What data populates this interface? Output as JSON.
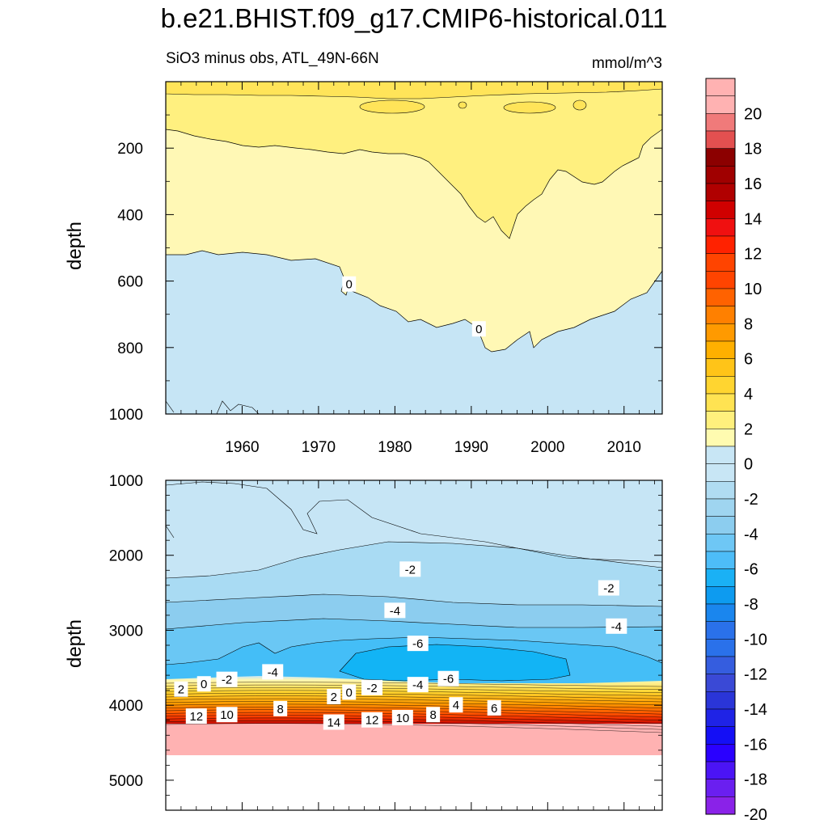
{
  "title": "b.e21.BHIST.f09_g17.CMIP6-historical.011",
  "subtitle_left": "SiO3 minus obs, ATL_49N-66N",
  "subtitle_right": "mmol/m^3",
  "colors": {
    "pos_palette": [
      "#fffbb0",
      "#fff07d",
      "#ffe352",
      "#ffd530",
      "#ffc418",
      "#ffb000",
      "#ff9a00",
      "#ff8000",
      "#ff6200",
      "#ff4400",
      "#ff2200",
      "#f01010",
      "#d00000",
      "#b00000",
      "#a00000",
      "#8c0000",
      "#e35050",
      "#f07a7a",
      "#ffb2b2"
    ],
    "neg_palette": [
      "#c8e6f5",
      "#b0dcf2",
      "#9fd5f0",
      "#8ccdef",
      "#6ec7f5",
      "#4dbdf8",
      "#1ab1f5",
      "#0d9bf0",
      "#1a86ee",
      "#2a71ea",
      "#355ddf",
      "#3a49d6",
      "#2a35d8",
      "#1f23e6",
      "#140ff5",
      "#2a00ff",
      "#4b14f5",
      "#6a1ff0",
      "#8a22e8"
    ]
  },
  "chart_data": [
    {
      "panel": "top",
      "type": "contour",
      "ylabel": "depth",
      "xlim": [
        1950,
        2015
      ],
      "ylim": [
        1000,
        0
      ],
      "x_ticks": [
        1960,
        1970,
        1980,
        1990,
        2000,
        2010
      ],
      "y_ticks": [
        200,
        400,
        600,
        800,
        1000
      ],
      "contour_labels": [
        {
          "text": "0",
          "year": 1974,
          "depth": 610
        },
        {
          "text": "0",
          "year": 1991,
          "depth": 745
        }
      ]
    },
    {
      "panel": "bottom",
      "type": "contour",
      "ylabel": "depth",
      "xlim": [
        1950,
        2015
      ],
      "ylim": [
        5400,
        1000
      ],
      "y_ticks": [
        1000,
        2000,
        3000,
        4000,
        5000
      ],
      "contour_labels": [
        {
          "text": "-2",
          "year": 1982,
          "depth": 2190
        },
        {
          "text": "-2",
          "year": 2008,
          "depth": 2440
        },
        {
          "text": "-4",
          "year": 1980,
          "depth": 2740
        },
        {
          "text": "-4",
          "year": 2009,
          "depth": 2950
        },
        {
          "text": "-6",
          "year": 1983,
          "depth": 3180
        },
        {
          "text": "-6",
          "year": 1987,
          "depth": 3650
        },
        {
          "text": "-4",
          "year": 1964,
          "depth": 3560
        },
        {
          "text": "-4",
          "year": 1983,
          "depth": 3730
        },
        {
          "text": "-2",
          "year": 1958,
          "depth": 3660
        },
        {
          "text": "-2",
          "year": 1977,
          "depth": 3770
        },
        {
          "text": "0",
          "year": 1955,
          "depth": 3720
        },
        {
          "text": "0",
          "year": 1974,
          "depth": 3830
        },
        {
          "text": "2",
          "year": 1952,
          "depth": 3790
        },
        {
          "text": "2",
          "year": 1972,
          "depth": 3890
        },
        {
          "text": "4",
          "year": 1988,
          "depth": 4000
        },
        {
          "text": "6",
          "year": 1993,
          "depth": 4040
        },
        {
          "text": "8",
          "year": 1965,
          "depth": 4050
        },
        {
          "text": "8",
          "year": 1985,
          "depth": 4130
        },
        {
          "text": "10",
          "year": 1958,
          "depth": 4130
        },
        {
          "text": "10",
          "year": 1981,
          "depth": 4170
        },
        {
          "text": "12",
          "year": 1954,
          "depth": 4150
        },
        {
          "text": "12",
          "year": 1977,
          "depth": 4200
        },
        {
          "text": "14",
          "year": 1972,
          "depth": 4230
        }
      ]
    }
  ],
  "colorbar": {
    "labels": [
      "20",
      "18",
      "16",
      "14",
      "12",
      "10",
      "8",
      "6",
      "4",
      "2",
      "0",
      "-2",
      "-4",
      "-6",
      "-8",
      "-10",
      "-12",
      "-14",
      "-16",
      "-18",
      "-20"
    ]
  }
}
